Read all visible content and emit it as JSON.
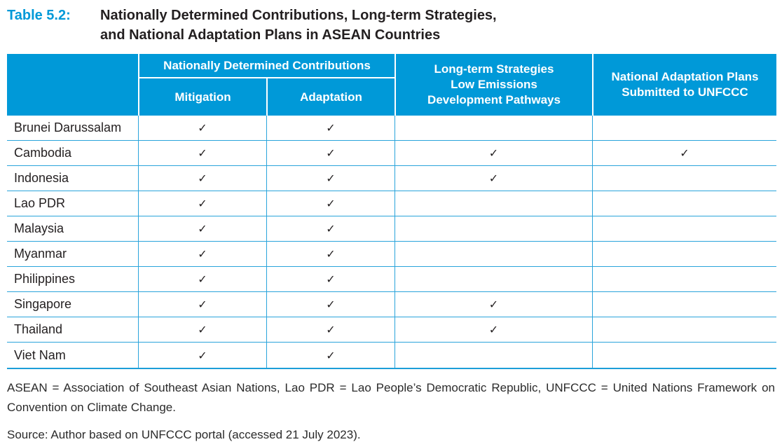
{
  "title": {
    "label": "Table 5.2:",
    "lines": [
      "Nationally Determined Contributions, Long-term Strategies,",
      "and National Adaptation Plans in ASEAN Countries"
    ]
  },
  "table": {
    "header": {
      "ndc_group": "Nationally Determined Contributions",
      "mitigation": "Mitigation",
      "adaptation": "Adaptation",
      "longterm_lines": [
        "Long-term Strategies",
        "Low Emissions",
        "Development Pathways"
      ],
      "nap_lines": [
        "National Adaptation Plans",
        "Submitted to UNFCCC"
      ]
    },
    "check_glyph": "✓",
    "rows": [
      {
        "country": "Brunei Darussalam",
        "marks": [
          "✓",
          "✓",
          "",
          ""
        ]
      },
      {
        "country": "Cambodia",
        "marks": [
          "✓",
          "✓",
          "✓",
          "✓"
        ]
      },
      {
        "country": "Indonesia",
        "marks": [
          "✓",
          "✓",
          "✓",
          ""
        ]
      },
      {
        "country": "Lao PDR",
        "marks": [
          "✓",
          "✓",
          "",
          ""
        ]
      },
      {
        "country": "Malaysia",
        "marks": [
          "✓",
          "✓",
          "",
          ""
        ]
      },
      {
        "country": "Myanmar",
        "marks": [
          "✓",
          "✓",
          "",
          ""
        ]
      },
      {
        "country": "Philippines",
        "marks": [
          "✓",
          "✓",
          "",
          ""
        ]
      },
      {
        "country": "Singapore",
        "marks": [
          "✓",
          "✓",
          "✓",
          ""
        ]
      },
      {
        "country": "Thailand",
        "marks": [
          "✓",
          "✓",
          "✓",
          ""
        ]
      },
      {
        "country": "Viet Nam",
        "marks": [
          "✓",
          "✓",
          "",
          ""
        ]
      }
    ]
  },
  "notes": {
    "abbreviations": "ASEAN = Association of Southeast Asian Nations, Lao PDR = Lao People’s Democratic Republic, UNFCCC = United Nations Framework on Convention on Climate Change.",
    "source": "Source: Author based on UNFCCC portal (accessed 21 July 2023)."
  },
  "colors": {
    "accent_blue": "#0099D8",
    "grid_blue": "#2AA4DB",
    "text_dark": "#231F20"
  }
}
